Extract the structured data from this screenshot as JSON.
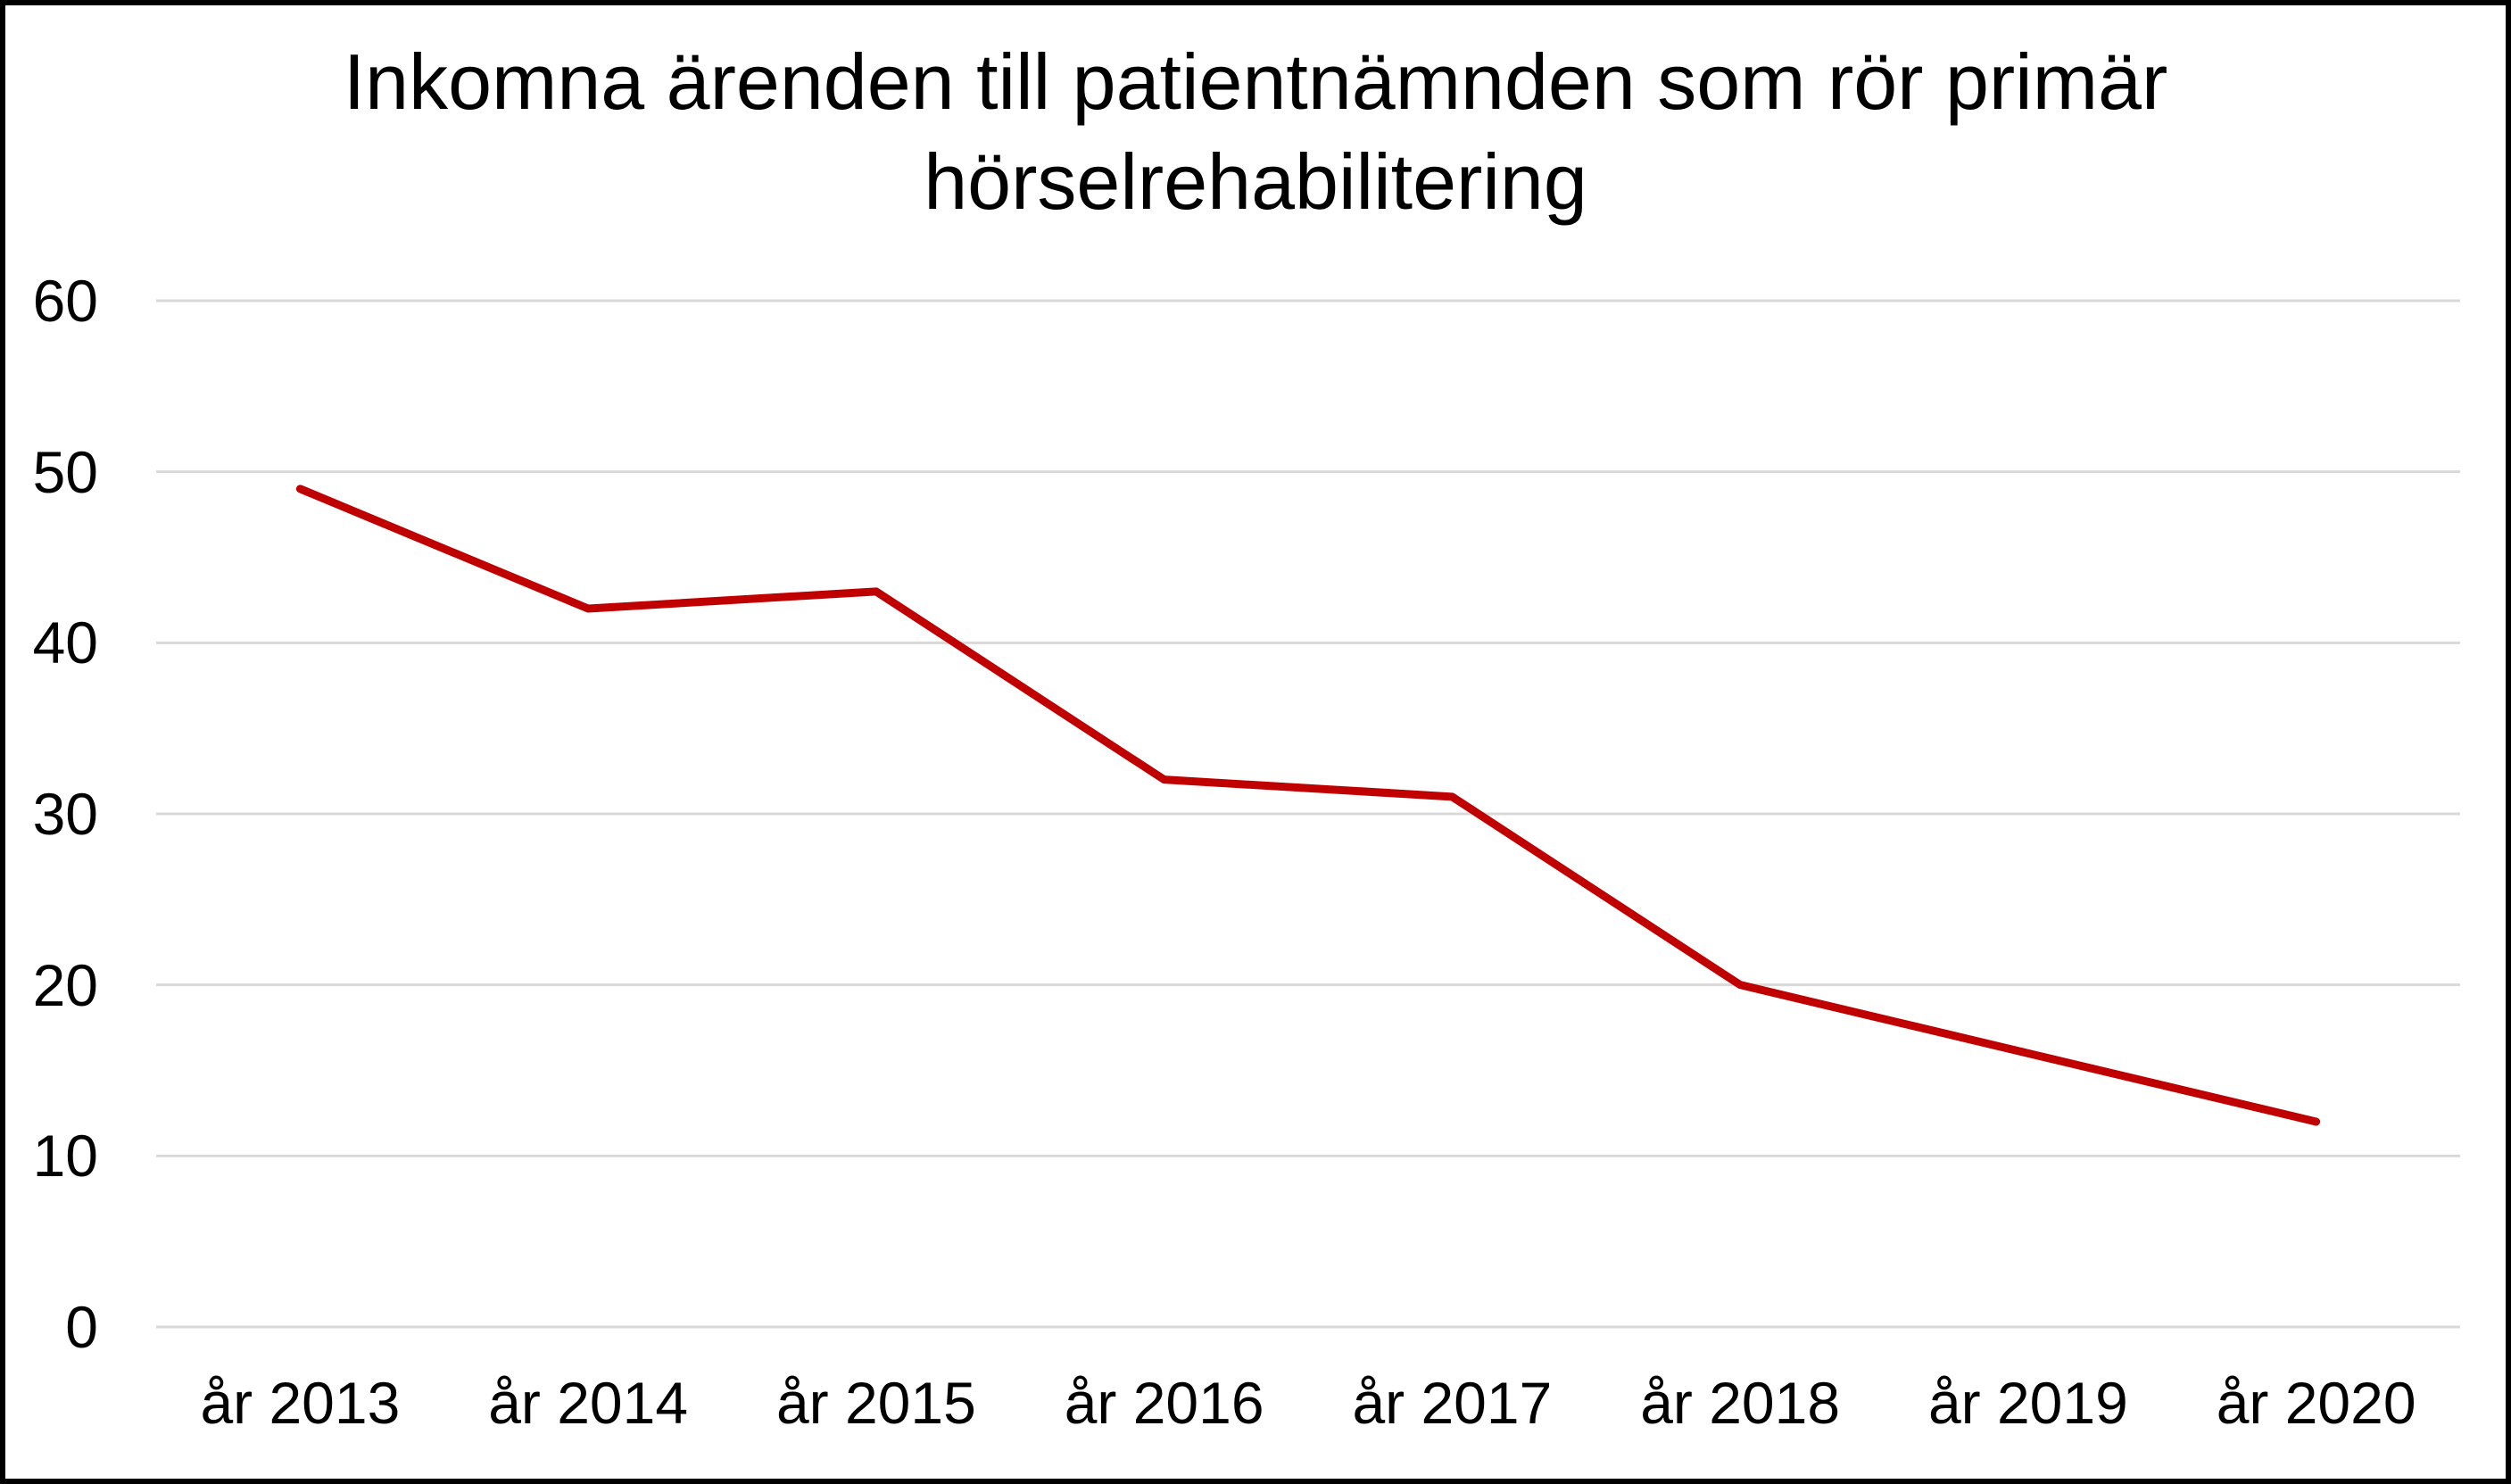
{
  "chart_data": {
    "type": "line",
    "title": "Inkomna ärenden till patientnämnden som rör primär hörselrehabilitering",
    "title_lines": [
      "Inkomna ärenden till patientnämnden som rör primär",
      "hörselrehabilitering"
    ],
    "categories": [
      "år 2013",
      "år 2014",
      "år 2015",
      "år 2016",
      "år 2017",
      "år 2018",
      "år 2019",
      "år 2020"
    ],
    "values": [
      49,
      42,
      43,
      32,
      31,
      20,
      16,
      12
    ],
    "xlabel": "",
    "ylabel": "",
    "ylim": [
      0,
      60
    ],
    "yticks": [
      0,
      10,
      20,
      30,
      40,
      50,
      60
    ],
    "grid": true,
    "legend": false,
    "line_color": "#c00000",
    "gridline_color": "#d9d9d9",
    "text_color": "#000000",
    "background_color": "#ffffff",
    "border_color": "#000000"
  }
}
